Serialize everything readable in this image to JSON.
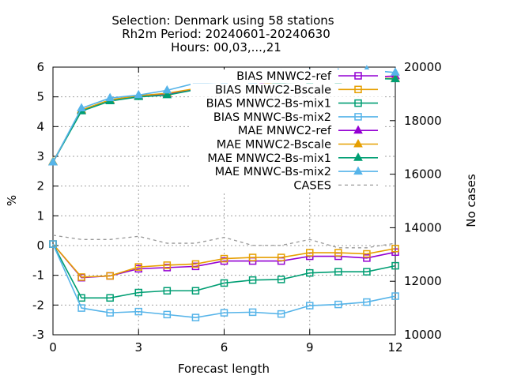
{
  "chart_data": {
    "type": "line",
    "title_lines": [
      "Selection: Denmark using    58 stations",
      "Rh2m   Period: 20240601-20240630",
      "Hours: 00,03,...,21"
    ],
    "xlabel": "Forecast length",
    "ylabel": "%",
    "y2label": "No cases",
    "x": [
      0,
      1,
      2,
      3,
      4,
      5,
      6,
      7,
      8,
      9,
      10,
      11,
      12
    ],
    "xlim": [
      0,
      12
    ],
    "ylim": [
      -3,
      6
    ],
    "y2lim": [
      10000,
      20000
    ],
    "x_ticks": [
      0,
      3,
      6,
      9,
      12
    ],
    "y_ticks": [
      -3,
      -2,
      -1,
      0,
      1,
      2,
      3,
      4,
      5,
      6
    ],
    "y2_ticks": [
      10000,
      12000,
      14000,
      16000,
      18000,
      20000
    ],
    "grid": true,
    "legend_position": "top-right",
    "series": [
      {
        "name": "BIAS MNWC2-ref",
        "color": "#9400d3",
        "marker": "square",
        "dash": false,
        "values": [
          0.05,
          -1.08,
          -1.02,
          -0.78,
          -0.74,
          -0.7,
          -0.52,
          -0.52,
          -0.52,
          -0.36,
          -0.36,
          -0.42,
          -0.22
        ]
      },
      {
        "name": "BIAS MNWC2-Bscale",
        "color": "#e69f00",
        "marker": "square",
        "dash": false,
        "values": [
          0.05,
          -1.06,
          -1.02,
          -0.72,
          -0.66,
          -0.62,
          -0.44,
          -0.4,
          -0.4,
          -0.24,
          -0.24,
          -0.28,
          -0.1
        ]
      },
      {
        "name": "BIAS MNWC2-Bs-mix1",
        "color": "#009e73",
        "marker": "square",
        "dash": false,
        "values": [
          0.05,
          -1.76,
          -1.76,
          -1.58,
          -1.52,
          -1.52,
          -1.26,
          -1.16,
          -1.14,
          -0.92,
          -0.88,
          -0.88,
          -0.68
        ]
      },
      {
        "name": "BIAS MNWC-Bs-mix2",
        "color": "#56b4e9",
        "marker": "square",
        "dash": false,
        "values": [
          0.05,
          -2.1,
          -2.26,
          -2.22,
          -2.32,
          -2.42,
          -2.26,
          -2.24,
          -2.3,
          -2.02,
          -1.98,
          -1.9,
          -1.7
        ]
      },
      {
        "name": "MAE MNWC2-ref",
        "color": "#9400d3",
        "marker": "triangle",
        "dash": false,
        "values": [
          2.8,
          4.55,
          4.88,
          5.02,
          5.1,
          5.26,
          5.34,
          5.4,
          5.56,
          5.58,
          5.6,
          5.66,
          5.7
        ]
      },
      {
        "name": "MAE MNWC2-Bscale",
        "color": "#e69f00",
        "marker": "triangle",
        "dash": false,
        "values": [
          2.82,
          4.56,
          4.9,
          5.04,
          5.12,
          5.28,
          5.36,
          5.4,
          5.5,
          5.58,
          5.6,
          5.62,
          5.62
        ]
      },
      {
        "name": "MAE MNWC2-Bs-mix1",
        "color": "#009e73",
        "marker": "triangle",
        "dash": false,
        "values": [
          2.8,
          4.52,
          4.86,
          5.0,
          5.06,
          5.24,
          5.3,
          5.36,
          5.48,
          5.5,
          5.5,
          5.62,
          5.6
        ]
      },
      {
        "name": "MAE MNWC-Bs-mix2",
        "color": "#56b4e9",
        "marker": "triangle",
        "dash": false,
        "values": [
          2.8,
          4.62,
          4.96,
          5.06,
          5.22,
          5.46,
          5.5,
          5.56,
          5.76,
          5.78,
          5.8,
          5.9,
          5.82
        ]
      },
      {
        "name": "CASES",
        "color": "#999999",
        "marker": "none",
        "dash": true,
        "axis": "y2",
        "values": [
          13720,
          13560,
          13560,
          13680,
          13420,
          13420,
          13640,
          13340,
          13340,
          13560,
          13250,
          13250,
          13420
        ]
      }
    ]
  }
}
